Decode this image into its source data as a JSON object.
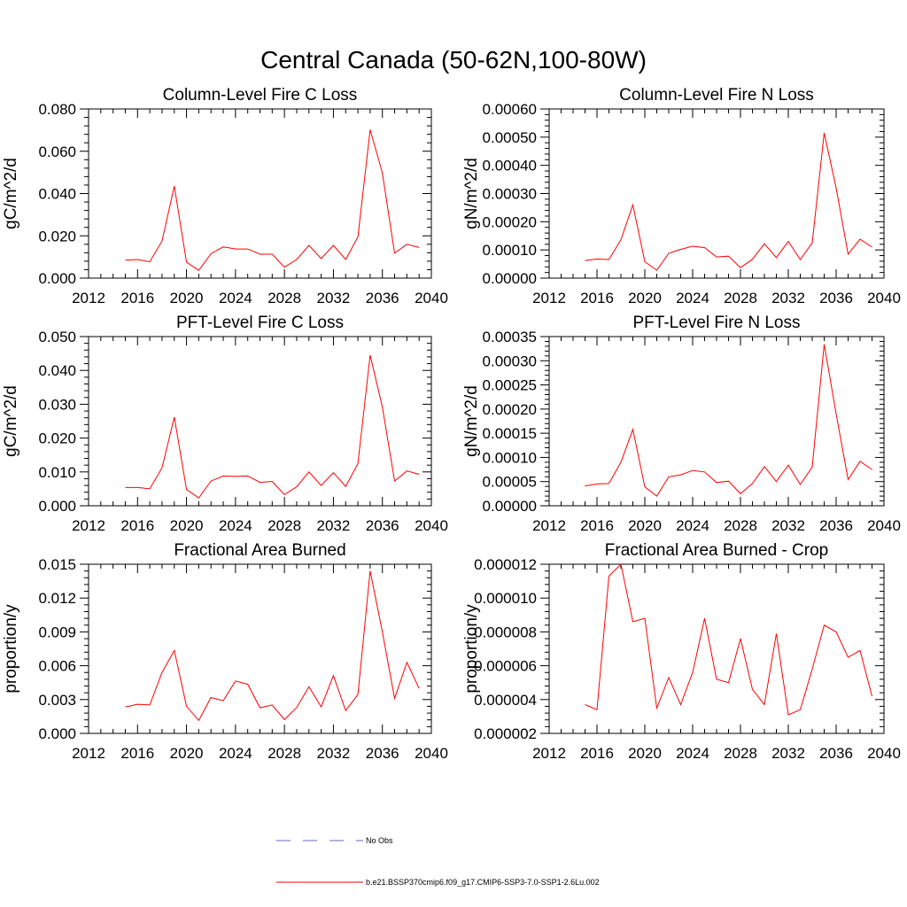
{
  "title": "Central Canada (50-62N,100-80W)",
  "legend": [
    {
      "label": "No Obs",
      "color": "#6666cc",
      "style": "dashed"
    },
    {
      "label": "b.e21.BSSP370cmip6.f09_g17.CMIP6-SSP3-7.0-SSP1-2.6Lu.002",
      "color": "#ff0000",
      "style": "solid"
    }
  ],
  "chart_data": [
    {
      "type": "line",
      "title": "Column-Level Fire C Loss",
      "ylabel": "gC/m^2/d",
      "xlim": [
        2012,
        2040
      ],
      "ylim": [
        0,
        0.08
      ],
      "xticks": [
        "2012",
        "2016",
        "2020",
        "2024",
        "2028",
        "2032",
        "2036",
        "2040"
      ],
      "yticks": [
        "0.000",
        "0.020",
        "0.040",
        "0.060",
        "0.080"
      ],
      "x": [
        2015,
        2016,
        2017,
        2018,
        2019,
        2020,
        2021,
        2022,
        2023,
        2024,
        2025,
        2026,
        2027,
        2028,
        2029,
        2030,
        2031,
        2032,
        2033,
        2034,
        2035,
        2036,
        2037,
        2038,
        2039
      ],
      "series": [
        {
          "values": [
            0.0085,
            0.0088,
            0.0077,
            0.0175,
            0.0435,
            0.0075,
            0.0037,
            0.0115,
            0.0148,
            0.0138,
            0.0138,
            0.0113,
            0.0113,
            0.0052,
            0.0088,
            0.0155,
            0.0092,
            0.0155,
            0.0088,
            0.0195,
            0.0702,
            0.0497,
            0.0118,
            0.016,
            0.0145
          ]
        }
      ]
    },
    {
      "type": "line",
      "title": "Column-Level Fire N Loss",
      "ylabel": "gN/m^2/d",
      "xlim": [
        2012,
        2040
      ],
      "ylim": [
        0,
        0.0006
      ],
      "xticks": [
        "2012",
        "2016",
        "2020",
        "2024",
        "2028",
        "2032",
        "2036",
        "2040"
      ],
      "yticks": [
        "0.00000",
        "0.00010",
        "0.00020",
        "0.00030",
        "0.00040",
        "0.00050",
        "0.00060"
      ],
      "x": [
        2015,
        2016,
        2017,
        2018,
        2019,
        2020,
        2021,
        2022,
        2023,
        2024,
        2025,
        2026,
        2027,
        2028,
        2029,
        2030,
        2031,
        2032,
        2033,
        2034,
        2035,
        2036,
        2037,
        2038,
        2039
      ],
      "series": [
        {
          "values": [
            6.2e-05,
            6.8e-05,
            6.6e-05,
            0.000136,
            0.00026,
            5.8e-05,
            2.8e-05,
            8.8e-05,
            0.000102,
            0.000113,
            0.000108,
            7.5e-05,
            7.8e-05,
            3.7e-05,
            6.7e-05,
            0.000122,
            7.3e-05,
            0.00013,
            6.6e-05,
            0.000125,
            0.000515,
            0.00032,
            8.5e-05,
            0.000138,
            0.00011
          ]
        }
      ]
    },
    {
      "type": "line",
      "title": "PFT-Level Fire C Loss",
      "ylabel": "gC/m^2/d",
      "xlim": [
        2012,
        2040
      ],
      "ylim": [
        0,
        0.05
      ],
      "xticks": [
        "2012",
        "2016",
        "2020",
        "2024",
        "2028",
        "2032",
        "2036",
        "2040"
      ],
      "yticks": [
        "0.000",
        "0.010",
        "0.020",
        "0.030",
        "0.040",
        "0.050"
      ],
      "x": [
        2015,
        2016,
        2017,
        2018,
        2019,
        2020,
        2021,
        2022,
        2023,
        2024,
        2025,
        2026,
        2027,
        2028,
        2029,
        2030,
        2031,
        2032,
        2033,
        2034,
        2035,
        2036,
        2037,
        2038,
        2039
      ],
      "series": [
        {
          "values": [
            0.0054,
            0.0054,
            0.005,
            0.0112,
            0.0262,
            0.0048,
            0.0023,
            0.0073,
            0.0088,
            0.0087,
            0.0088,
            0.0069,
            0.0072,
            0.0033,
            0.0056,
            0.01,
            0.006,
            0.0098,
            0.0057,
            0.0125,
            0.0445,
            0.0292,
            0.0073,
            0.0103,
            0.0093
          ]
        }
      ]
    },
    {
      "type": "line",
      "title": "PFT-Level Fire N Loss",
      "ylabel": "gN/m^2/d",
      "xlim": [
        2012,
        2040
      ],
      "ylim": [
        0,
        0.00035
      ],
      "xticks": [
        "2012",
        "2016",
        "2020",
        "2024",
        "2028",
        "2032",
        "2036",
        "2040"
      ],
      "yticks": [
        "0.00000",
        "0.00005",
        "0.00010",
        "0.00015",
        "0.00020",
        "0.00025",
        "0.00030",
        "0.00035"
      ],
      "x": [
        2015,
        2016,
        2017,
        2018,
        2019,
        2020,
        2021,
        2022,
        2023,
        2024,
        2025,
        2026,
        2027,
        2028,
        2029,
        2030,
        2031,
        2032,
        2033,
        2034,
        2035,
        2036,
        2037,
        2038,
        2039
      ],
      "series": [
        {
          "values": [
            4.1e-05,
            4.5e-05,
            4.6e-05,
            9e-05,
            0.000158,
            3.9e-05,
            2e-05,
            6e-05,
            6.4e-05,
            7.3e-05,
            7e-05,
            4.8e-05,
            5.1e-05,
            2.5e-05,
            4.6e-05,
            8.1e-05,
            5e-05,
            8.4e-05,
            4.4e-05,
            8e-05,
            0.000334,
            0.00019,
            5.4e-05,
            9.2e-05,
            7.5e-05
          ]
        }
      ]
    },
    {
      "type": "line",
      "title": "Fractional Area Burned",
      "ylabel": "proportion/y",
      "xlim": [
        2012,
        2040
      ],
      "ylim": [
        0,
        0.015
      ],
      "xticks": [
        "2012",
        "2016",
        "2020",
        "2024",
        "2028",
        "2032",
        "2036",
        "2040"
      ],
      "yticks": [
        "0.000",
        "0.003",
        "0.006",
        "0.009",
        "0.012",
        "0.015"
      ],
      "x": [
        2015,
        2016,
        2017,
        2018,
        2019,
        2020,
        2021,
        2022,
        2023,
        2024,
        2025,
        2026,
        2027,
        2028,
        2029,
        2030,
        2031,
        2032,
        2033,
        2034,
        2035,
        2036,
        2037,
        2038,
        2039
      ],
      "series": [
        {
          "values": [
            0.00235,
            0.00258,
            0.00252,
            0.0054,
            0.00735,
            0.0024,
            0.00115,
            0.00318,
            0.0029,
            0.00465,
            0.00435,
            0.00228,
            0.00252,
            0.00122,
            0.0023,
            0.00413,
            0.00235,
            0.00512,
            0.00203,
            0.00345,
            0.0144,
            0.009,
            0.0031,
            0.0063,
            0.00398
          ]
        }
      ]
    },
    {
      "type": "line",
      "title": "Fractional Area Burned - Crop",
      "ylabel": "proportion/y",
      "xlim": [
        2012,
        2040
      ],
      "ylim": [
        2e-06,
        1.2e-05
      ],
      "xticks": [
        "2012",
        "2016",
        "2020",
        "2024",
        "2028",
        "2032",
        "2036",
        "2040"
      ],
      "yticks": [
        "0.000002",
        "0.000004",
        "0.000006",
        "0.000008",
        "0.000010",
        "0.000012"
      ],
      "x": [
        2015,
        2016,
        2017,
        2018,
        2019,
        2020,
        2021,
        2022,
        2023,
        2024,
        2025,
        2026,
        2027,
        2028,
        2029,
        2030,
        2031,
        2032,
        2033,
        2034,
        2035,
        2036,
        2037,
        2038,
        2039
      ],
      "series": [
        {
          "values": [
            3.7e-06,
            3.4e-06,
            1.13e-05,
            1.2e-05,
            8.6e-06,
            8.8e-06,
            3.5e-06,
            5.3e-06,
            3.7e-06,
            5.6e-06,
            8.8e-06,
            5.2e-06,
            5e-06,
            7.6e-06,
            4.6e-06,
            3.7e-06,
            7.9e-06,
            3.1e-06,
            3.4e-06,
            5.8e-06,
            8.4e-06,
            8e-06,
            6.5e-06,
            6.9e-06,
            4.2e-06
          ]
        }
      ]
    }
  ]
}
